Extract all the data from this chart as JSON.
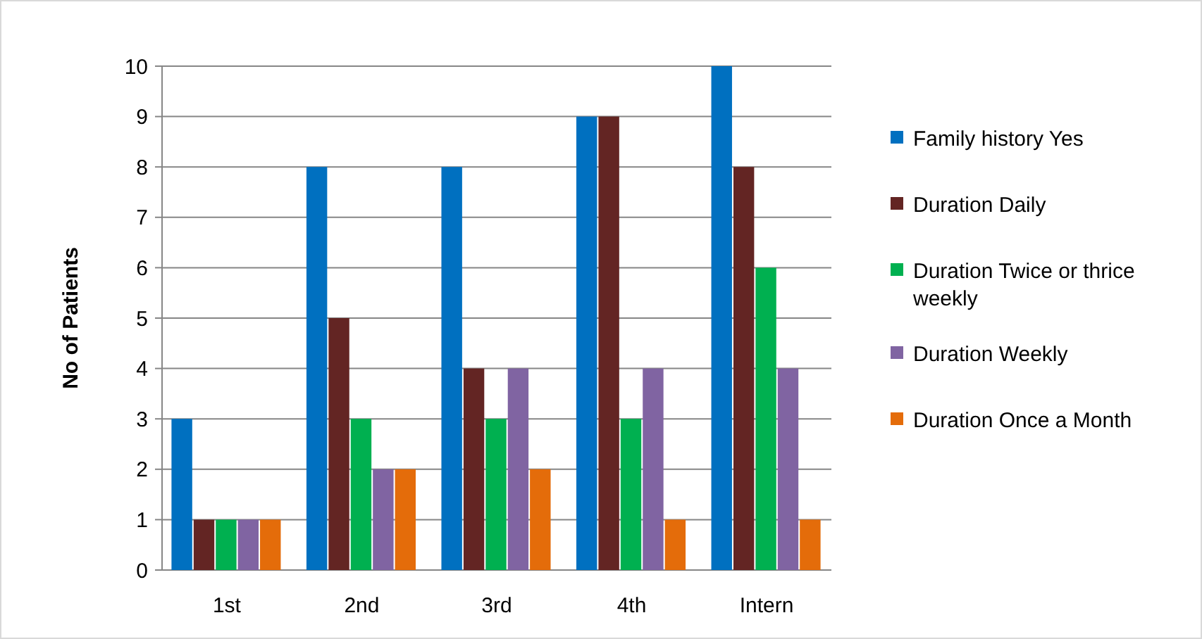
{
  "chart_data": {
    "type": "bar",
    "ylabel": "No of Patients",
    "categories": [
      "1st",
      "2nd",
      "3rd",
      "4th",
      "Intern"
    ],
    "series": [
      {
        "name": "Family history Yes",
        "color": "#0070c0",
        "values": [
          3,
          8,
          8,
          9,
          10
        ]
      },
      {
        "name": "Duration Daily",
        "color": "#632523",
        "values": [
          1,
          5,
          4,
          9,
          8
        ]
      },
      {
        "name": "Duration Twice or thrice weekly",
        "color": "#00b050",
        "values": [
          1,
          3,
          3,
          3,
          6
        ]
      },
      {
        "name": "Duration Weekly",
        "color": "#8064a2",
        "values": [
          1,
          2,
          4,
          4,
          4
        ]
      },
      {
        "name": "Duration Once a Month",
        "color": "#e46c0a",
        "values": [
          1,
          2,
          2,
          1,
          1
        ]
      }
    ],
    "ylim": [
      0,
      10
    ],
    "yticks": [
      0,
      1,
      2,
      3,
      4,
      5,
      6,
      7,
      8,
      9,
      10
    ],
    "grid": "y",
    "legend": "right"
  }
}
